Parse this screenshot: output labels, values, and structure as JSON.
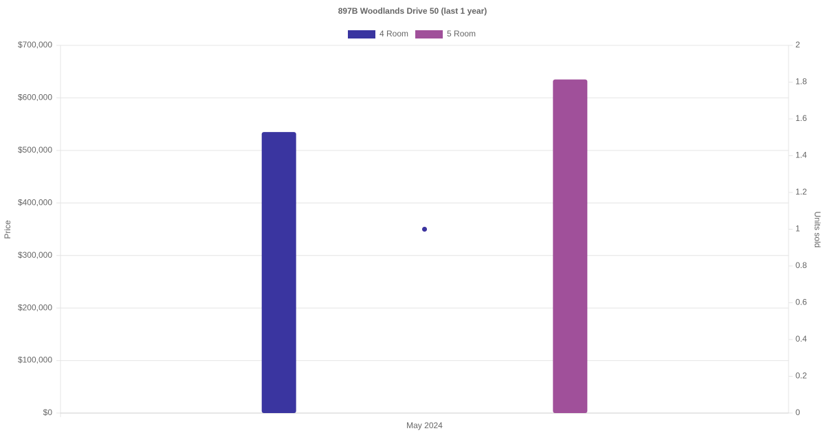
{
  "chart_data": {
    "type": "bar",
    "title": "897B Woodlands Drive 50 (last 1 year)",
    "categories": [
      "May 2024"
    ],
    "series": [
      {
        "name": "4 Room",
        "color": "#3a35a0",
        "values": [
          535000
        ],
        "units": [
          1
        ]
      },
      {
        "name": "5 Room",
        "color": "#a0509a",
        "values": [
          635000
        ],
        "units": [
          1
        ]
      }
    ],
    "y_label": "Price",
    "y2_label": "Units sold",
    "ylim": [
      0,
      700000
    ],
    "yticks": [
      {
        "value": 0,
        "label": "$0"
      },
      {
        "value": 100000,
        "label": "$100,000"
      },
      {
        "value": 200000,
        "label": "$200,000"
      },
      {
        "value": 300000,
        "label": "$300,000"
      },
      {
        "value": 400000,
        "label": "$400,000"
      },
      {
        "value": 500000,
        "label": "$500,000"
      },
      {
        "value": 600000,
        "label": "$600,000"
      },
      {
        "value": 700000,
        "label": "$700,000"
      }
    ],
    "y2lim": [
      0,
      2
    ],
    "y2ticks": [
      0,
      0.2,
      0.4,
      0.6,
      0.8,
      1,
      1.2,
      1.4,
      1.6,
      1.8,
      2
    ],
    "grid": true,
    "legend": "top"
  }
}
